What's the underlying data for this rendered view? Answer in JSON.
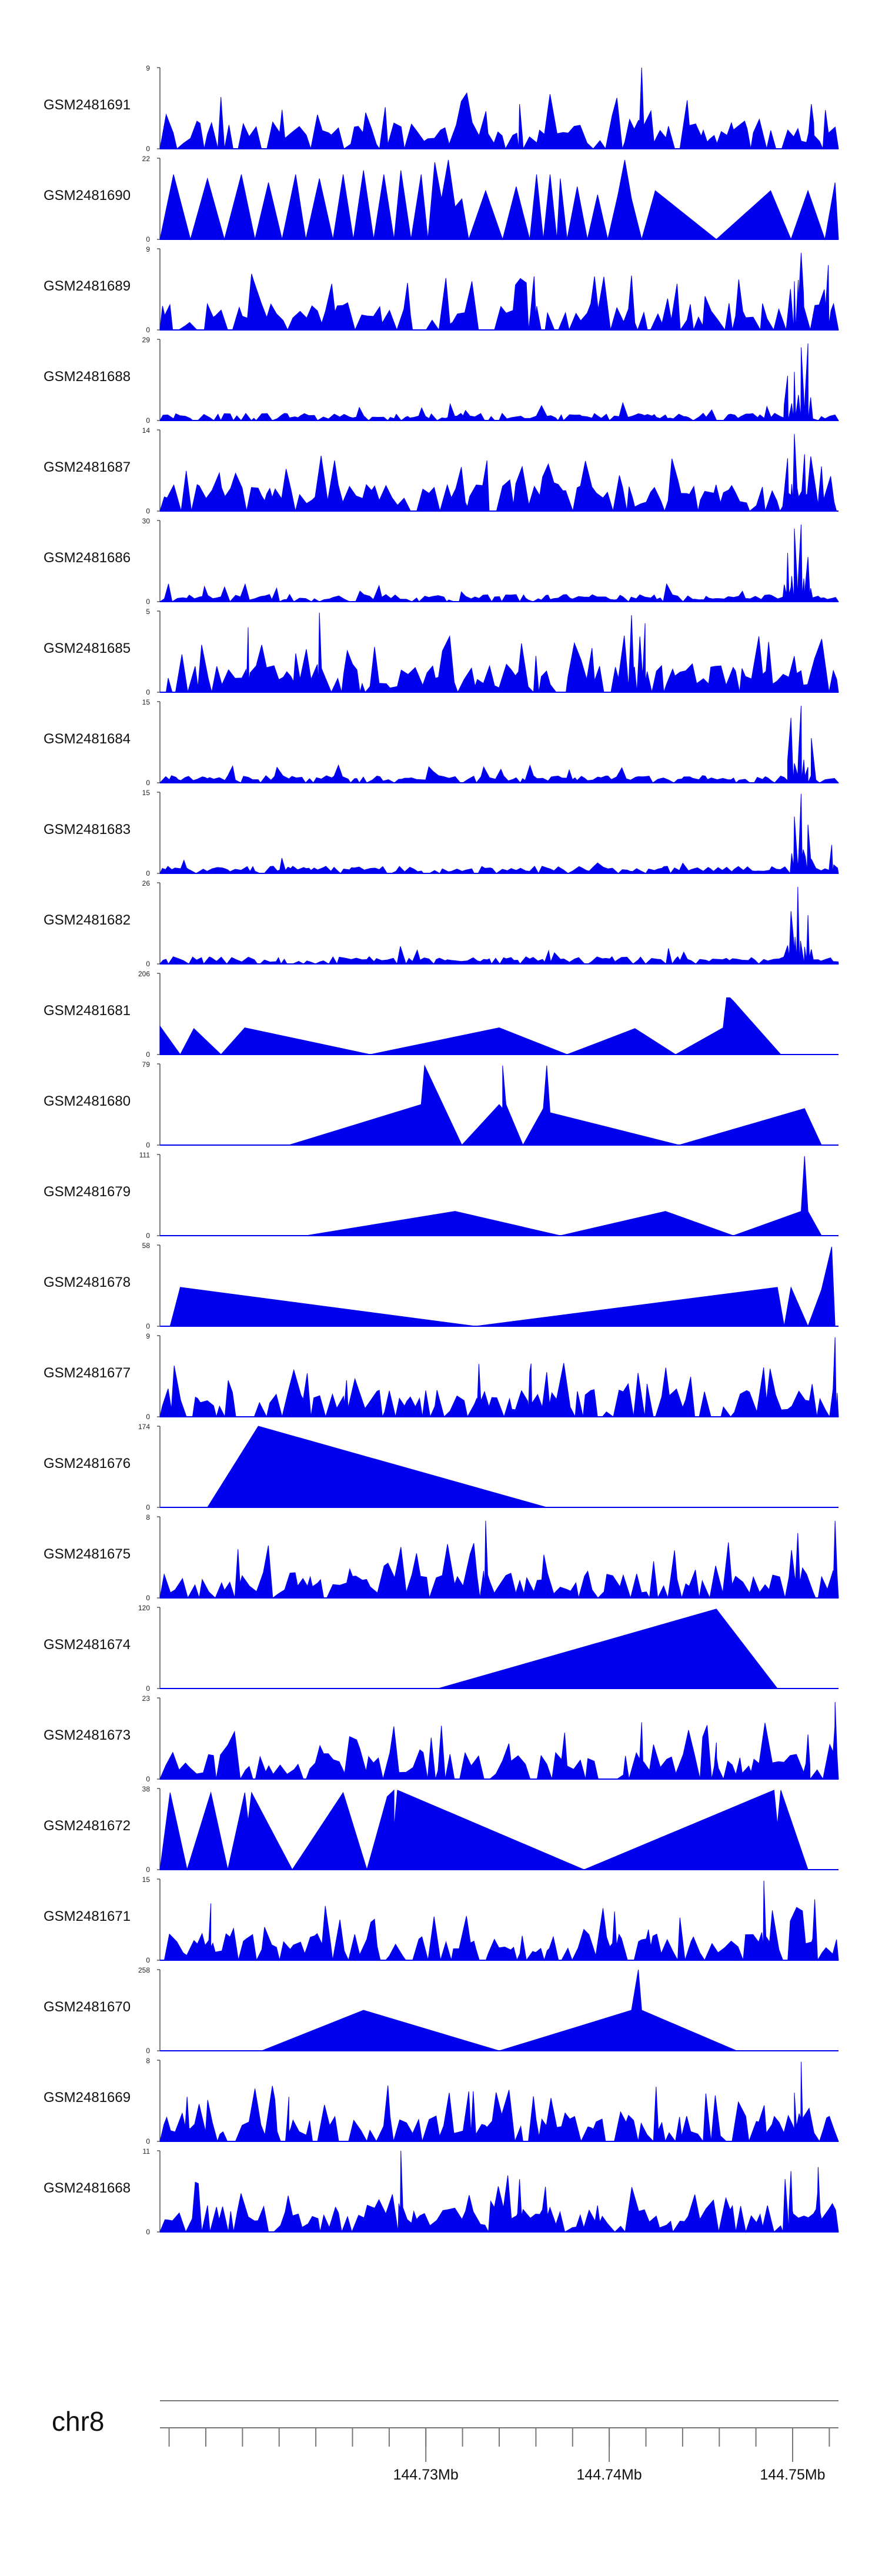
{
  "chart_data": {
    "type": "area",
    "title": "",
    "color": "#0000ee",
    "x_domain": [
      144.7155,
      144.7525
    ],
    "tracks": [
      {
        "name": "GSM2481691",
        "ymax": "9",
        "ymin": "0",
        "max": 9,
        "style": "dense",
        "seed": 91,
        "peaks": [
          {
            "x": 0.71,
            "h": 1.0,
            "w": 0.003
          },
          {
            "x": 0.53,
            "h": 0.55,
            "w": 0.004
          },
          {
            "x": 0.96,
            "h": 0.55,
            "w": 0.004
          },
          {
            "x": 0.18,
            "h": 0.48,
            "w": 0.004
          }
        ]
      },
      {
        "name": "GSM2481690",
        "ymax": "22",
        "ymin": "0",
        "max": 22,
        "style": "spikes",
        "points": [
          [
            0.0,
            0
          ],
          [
            0.02,
            0.8
          ],
          [
            0.045,
            0
          ],
          [
            0.07,
            0.75
          ],
          [
            0.095,
            0
          ],
          [
            0.12,
            0.8
          ],
          [
            0.14,
            0
          ],
          [
            0.16,
            0.7
          ],
          [
            0.18,
            0
          ],
          [
            0.2,
            0.8
          ],
          [
            0.215,
            0
          ],
          [
            0.235,
            0.75
          ],
          [
            0.255,
            0
          ],
          [
            0.27,
            0.8
          ],
          [
            0.285,
            0
          ],
          [
            0.3,
            0.85
          ],
          [
            0.315,
            0
          ],
          [
            0.33,
            0.8
          ],
          [
            0.345,
            0
          ],
          [
            0.355,
            0.85
          ],
          [
            0.37,
            0
          ],
          [
            0.385,
            0.8
          ],
          [
            0.395,
            0
          ],
          [
            0.405,
            0.95
          ],
          [
            0.415,
            0.5
          ],
          [
            0.425,
            0.98
          ],
          [
            0.435,
            0.4
          ],
          [
            0.445,
            0.5
          ],
          [
            0.455,
            0
          ],
          [
            0.48,
            0.6
          ],
          [
            0.505,
            0
          ],
          [
            0.525,
            0.65
          ],
          [
            0.545,
            0
          ],
          [
            0.555,
            0.8
          ],
          [
            0.565,
            0
          ],
          [
            0.575,
            0.8
          ],
          [
            0.585,
            0
          ],
          [
            0.59,
            0.75
          ],
          [
            0.6,
            0
          ],
          [
            0.615,
            0.65
          ],
          [
            0.63,
            0
          ],
          [
            0.645,
            0.55
          ],
          [
            0.66,
            0
          ],
          [
            0.675,
            0.55
          ],
          [
            0.685,
            0.98
          ],
          [
            0.695,
            0.5
          ],
          [
            0.71,
            0
          ],
          [
            0.73,
            0.6
          ],
          [
            0.82,
            0
          ],
          [
            0.9,
            0.6
          ],
          [
            0.93,
            0
          ],
          [
            0.955,
            0.6
          ],
          [
            0.98,
            0
          ],
          [
            0.995,
            0.7
          ],
          [
            1.0,
            0
          ]
        ]
      },
      {
        "name": "GSM2481689",
        "ymax": "9",
        "ymin": "0",
        "max": 9,
        "style": "dense",
        "seed": 89,
        "peaks": [
          {
            "x": 0.945,
            "h": 0.95,
            "w": 0.004
          },
          {
            "x": 0.985,
            "h": 0.8,
            "w": 0.004
          },
          {
            "x": 0.935,
            "h": 0.6,
            "w": 0.003
          },
          {
            "x": 0.55,
            "h": 0.55,
            "w": 0.004
          }
        ]
      },
      {
        "name": "GSM2481688",
        "ymax": "29",
        "ymin": "0",
        "max": 29,
        "style": "lowpeak",
        "seed": 88,
        "peaks": [
          {
            "x": 0.925,
            "h": 0.55,
            "w": 0.005
          },
          {
            "x": 0.945,
            "h": 0.9,
            "w": 0.004
          },
          {
            "x": 0.955,
            "h": 0.95,
            "w": 0.004
          },
          {
            "x": 0.935,
            "h": 0.6,
            "w": 0.004
          }
        ]
      },
      {
        "name": "GSM2481687",
        "ymax": "14",
        "ymin": "0",
        "max": 14,
        "style": "dense",
        "seed": 87,
        "peaks": [
          {
            "x": 0.935,
            "h": 0.95,
            "w": 0.004
          },
          {
            "x": 0.925,
            "h": 0.65,
            "w": 0.005
          },
          {
            "x": 0.95,
            "h": 0.7,
            "w": 0.004
          },
          {
            "x": 0.975,
            "h": 0.55,
            "w": 0.004
          }
        ]
      },
      {
        "name": "GSM2481686",
        "ymax": "30",
        "ymin": "0",
        "max": 30,
        "style": "lowpeak",
        "seed": 86,
        "peaks": [
          {
            "x": 0.925,
            "h": 0.6,
            "w": 0.005
          },
          {
            "x": 0.935,
            "h": 0.9,
            "w": 0.004
          },
          {
            "x": 0.945,
            "h": 0.95,
            "w": 0.004
          },
          {
            "x": 0.955,
            "h": 0.55,
            "w": 0.004
          }
        ]
      },
      {
        "name": "GSM2481685",
        "ymax": "5",
        "ymin": "0",
        "max": 5,
        "style": "dense",
        "seed": 85,
        "peaks": [
          {
            "x": 0.235,
            "h": 0.98,
            "w": 0.003
          },
          {
            "x": 0.695,
            "h": 0.95,
            "w": 0.003
          },
          {
            "x": 0.13,
            "h": 0.8,
            "w": 0.003
          },
          {
            "x": 0.715,
            "h": 0.85,
            "w": 0.003
          }
        ]
      },
      {
        "name": "GSM2481684",
        "ymax": "15",
        "ymin": "0",
        "max": 15,
        "style": "lowpeak",
        "seed": 84,
        "peaks": [
          {
            "x": 0.93,
            "h": 0.8,
            "w": 0.005
          },
          {
            "x": 0.945,
            "h": 0.95,
            "w": 0.004
          },
          {
            "x": 0.96,
            "h": 0.55,
            "w": 0.005
          }
        ]
      },
      {
        "name": "GSM2481683",
        "ymax": "15",
        "ymin": "0",
        "max": 15,
        "style": "lowpeak",
        "seed": 83,
        "peaks": [
          {
            "x": 0.935,
            "h": 0.7,
            "w": 0.004
          },
          {
            "x": 0.945,
            "h": 0.98,
            "w": 0.003
          },
          {
            "x": 0.955,
            "h": 0.6,
            "w": 0.004
          },
          {
            "x": 0.99,
            "h": 0.35,
            "w": 0.003
          }
        ]
      },
      {
        "name": "GSM2481682",
        "ymax": "26",
        "ymin": "0",
        "max": 26,
        "style": "lowpeak",
        "seed": 82,
        "peaks": [
          {
            "x": 0.93,
            "h": 0.65,
            "w": 0.005
          },
          {
            "x": 0.94,
            "h": 0.95,
            "w": 0.004
          },
          {
            "x": 0.955,
            "h": 0.6,
            "w": 0.005
          }
        ]
      },
      {
        "name": "GSM2481681",
        "ymax": "206",
        "ymin": "0",
        "max": 206,
        "style": "spikes",
        "points": [
          [
            0.0,
            0
          ],
          [
            0.0,
            0.35
          ],
          [
            0.03,
            0
          ],
          [
            0.05,
            0.32
          ],
          [
            0.09,
            0
          ],
          [
            0.125,
            0.33
          ],
          [
            0.31,
            0
          ],
          [
            0.5,
            0.33
          ],
          [
            0.6,
            0
          ],
          [
            0.7,
            0.32
          ],
          [
            0.76,
            0
          ],
          [
            0.83,
            0.33
          ],
          [
            0.835,
            0.7
          ],
          [
            0.84,
            0.7
          ],
          [
            0.845,
            0.66
          ],
          [
            0.915,
            0
          ]
        ]
      },
      {
        "name": "GSM2481680",
        "ymax": "79",
        "ymin": "0",
        "max": 79,
        "style": "spikes",
        "points": [
          [
            0.19,
            0
          ],
          [
            0.385,
            0.5
          ],
          [
            0.39,
            0.98
          ],
          [
            0.445,
            0
          ],
          [
            0.5,
            0.5
          ],
          [
            0.505,
            0.45
          ],
          [
            0.505,
            0.98
          ],
          [
            0.51,
            0.5
          ],
          [
            0.535,
            0
          ],
          [
            0.565,
            0.45
          ],
          [
            0.57,
            0.98
          ],
          [
            0.575,
            0.4
          ],
          [
            0.765,
            0
          ],
          [
            0.95,
            0.45
          ],
          [
            0.975,
            0
          ]
        ]
      },
      {
        "name": "GSM2481679",
        "ymax": "111",
        "ymin": "0",
        "max": 111,
        "style": "spikes",
        "points": [
          [
            0.215,
            0
          ],
          [
            0.435,
            0.3
          ],
          [
            0.59,
            0
          ],
          [
            0.745,
            0.3
          ],
          [
            0.845,
            0
          ],
          [
            0.945,
            0.3
          ],
          [
            0.95,
            0.98
          ],
          [
            0.955,
            0.3
          ],
          [
            0.975,
            0
          ]
        ]
      },
      {
        "name": "GSM2481678",
        "ymax": "58",
        "ymin": "0",
        "max": 58,
        "style": "spikes",
        "points": [
          [
            0.015,
            0
          ],
          [
            0.03,
            0.48
          ],
          [
            0.465,
            0
          ],
          [
            0.91,
            0.48
          ],
          [
            0.92,
            0
          ],
          [
            0.93,
            0.48
          ],
          [
            0.955,
            0
          ],
          [
            0.975,
            0.45
          ],
          [
            0.99,
            0.98
          ],
          [
            0.995,
            0
          ]
        ]
      },
      {
        "name": "GSM2481677",
        "ymax": "9",
        "ymin": "0",
        "max": 9,
        "style": "dense",
        "seed": 77,
        "peaks": [
          {
            "x": 0.995,
            "h": 0.98,
            "w": 0.003
          },
          {
            "x": 0.47,
            "h": 0.65,
            "w": 0.003
          },
          {
            "x": 0.275,
            "h": 0.45,
            "w": 0.003
          },
          {
            "x": 0.545,
            "h": 0.55,
            "w": 0.003
          }
        ]
      },
      {
        "name": "GSM2481676",
        "ymax": "174",
        "ymin": "0",
        "max": 174,
        "style": "spikes",
        "points": [
          [
            0.07,
            0
          ],
          [
            0.145,
            1.0
          ],
          [
            0.57,
            0
          ]
        ]
      },
      {
        "name": "GSM2481675",
        "ymax": "8",
        "ymin": "0",
        "max": 8,
        "style": "dense",
        "seed": 75,
        "peaks": [
          {
            "x": 0.48,
            "h": 0.95,
            "w": 0.003
          },
          {
            "x": 0.995,
            "h": 0.95,
            "w": 0.003
          },
          {
            "x": 0.94,
            "h": 0.8,
            "w": 0.003
          },
          {
            "x": 0.115,
            "h": 0.6,
            "w": 0.003
          }
        ]
      },
      {
        "name": "GSM2481674",
        "ymax": "120",
        "ymin": "0",
        "max": 120,
        "style": "spikes",
        "points": [
          [
            0.41,
            0
          ],
          [
            0.82,
            0.98
          ],
          [
            0.91,
            0
          ]
        ]
      },
      {
        "name": "GSM2481673",
        "ymax": "23",
        "ymin": "0",
        "max": 23,
        "style": "dense",
        "seed": 73,
        "peaks": [
          {
            "x": 0.995,
            "h": 0.95,
            "w": 0.003
          },
          {
            "x": 0.71,
            "h": 0.7,
            "w": 0.003
          },
          {
            "x": 0.955,
            "h": 0.55,
            "w": 0.003
          },
          {
            "x": 0.82,
            "h": 0.45,
            "w": 0.003
          }
        ]
      },
      {
        "name": "GSM2481672",
        "ymax": "38",
        "ymin": "0",
        "max": 38,
        "style": "spikes",
        "points": [
          [
            0.0,
            0
          ],
          [
            0.015,
            0.95
          ],
          [
            0.04,
            0
          ],
          [
            0.075,
            0.95
          ],
          [
            0.1,
            0
          ],
          [
            0.125,
            0.95
          ],
          [
            0.13,
            0.6
          ],
          [
            0.135,
            0.95
          ],
          [
            0.195,
            0
          ],
          [
            0.27,
            0.95
          ],
          [
            0.305,
            0
          ],
          [
            0.335,
            0.9
          ],
          [
            0.345,
            0.98
          ],
          [
            0.345,
            0.5
          ],
          [
            0.35,
            0.98
          ],
          [
            0.625,
            0
          ],
          [
            0.905,
            0.98
          ],
          [
            0.91,
            0.55
          ],
          [
            0.915,
            0.98
          ],
          [
            0.955,
            0
          ]
        ]
      },
      {
        "name": "GSM2481671",
        "ymax": "15",
        "ymin": "0",
        "max": 15,
        "style": "dense",
        "seed": 71,
        "peaks": [
          {
            "x": 0.89,
            "h": 0.98,
            "w": 0.003
          },
          {
            "x": 0.965,
            "h": 0.75,
            "w": 0.003
          },
          {
            "x": 0.075,
            "h": 0.7,
            "w": 0.003
          },
          {
            "x": 0.67,
            "h": 0.6,
            "w": 0.003
          }
        ]
      },
      {
        "name": "GSM2481670",
        "ymax": "258",
        "ymin": "0",
        "max": 258,
        "style": "spikes",
        "points": [
          [
            0.15,
            0
          ],
          [
            0.3,
            0.5
          ],
          [
            0.5,
            0
          ],
          [
            0.695,
            0.5
          ],
          [
            0.705,
            1.0
          ],
          [
            0.71,
            0.5
          ],
          [
            0.85,
            0
          ]
        ]
      },
      {
        "name": "GSM2481669",
        "ymax": "8",
        "ymin": "0",
        "max": 8,
        "style": "dense",
        "seed": 69,
        "peaks": [
          {
            "x": 0.945,
            "h": 0.98,
            "w": 0.003
          },
          {
            "x": 0.935,
            "h": 0.6,
            "w": 0.003
          },
          {
            "x": 0.19,
            "h": 0.55,
            "w": 0.003
          },
          {
            "x": 0.04,
            "h": 0.55,
            "w": 0.003
          }
        ]
      },
      {
        "name": "GSM2481668",
        "ymax": "11",
        "ymin": "0",
        "max": 11,
        "style": "dense",
        "seed": 68,
        "peaks": [
          {
            "x": 0.355,
            "h": 1.0,
            "w": 0.003
          },
          {
            "x": 0.97,
            "h": 0.8,
            "w": 0.003
          },
          {
            "x": 0.93,
            "h": 0.75,
            "w": 0.003
          },
          {
            "x": 0.53,
            "h": 0.65,
            "w": 0.003
          }
        ]
      }
    ],
    "axis": {
      "chromosome": "chr8",
      "ticks": [
        {
          "value": 144.73,
          "label": "144.73Mb"
        },
        {
          "value": 144.74,
          "label": "144.74Mb"
        },
        {
          "value": 144.75,
          "label": "144.75Mb"
        }
      ],
      "minor_tick_step": 0.002
    }
  }
}
